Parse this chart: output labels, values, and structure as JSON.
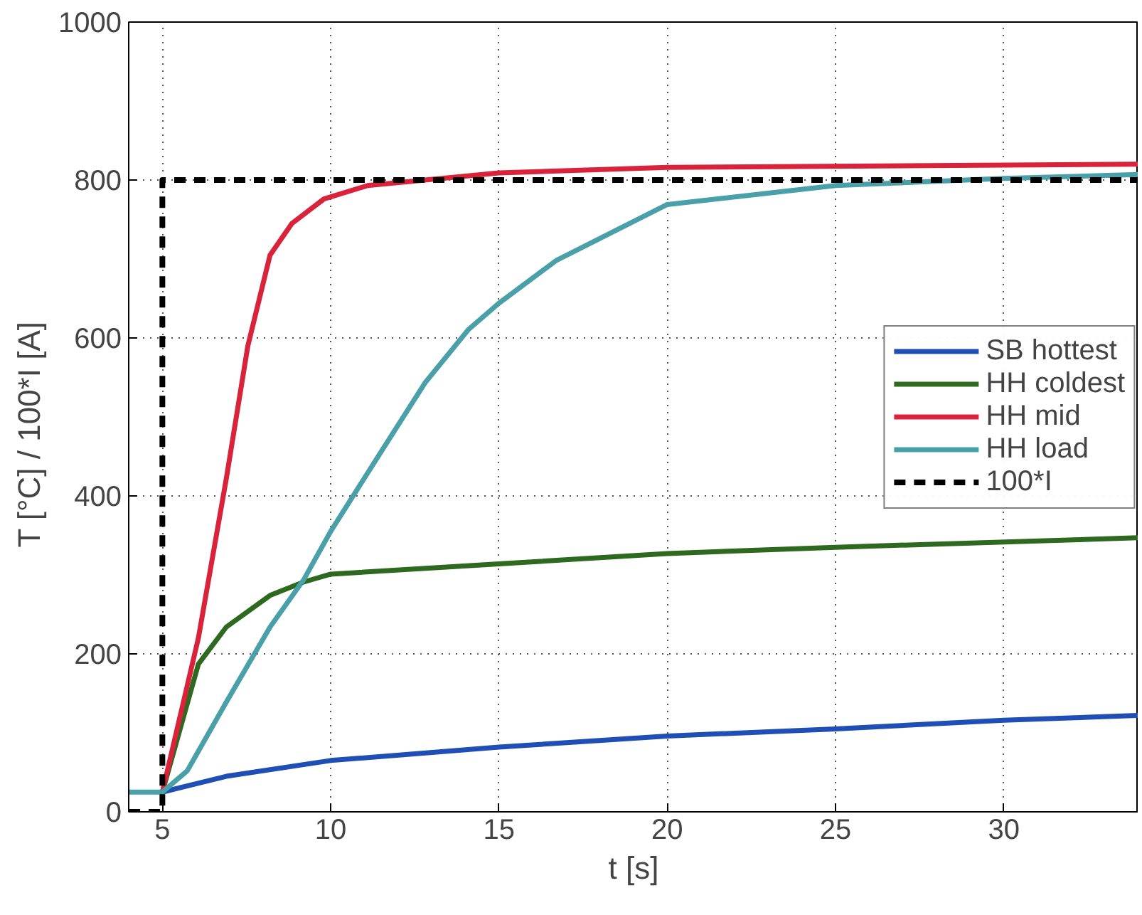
{
  "chart_data": {
    "type": "line",
    "xlabel": "t [s]",
    "ylabel": "T [°C]   /   100*I [A]",
    "xlim": [
      4,
      34
    ],
    "xticks": [
      5,
      10,
      15,
      20,
      25,
      30
    ],
    "ylim": [
      0,
      1000
    ],
    "yticks": [
      0,
      200,
      400,
      600,
      800,
      1000
    ],
    "grid": true,
    "legend": "right",
    "marker": "none",
    "series": [
      {
        "name": "SB hottest",
        "color": "#1f4fb5",
        "x": [
          5,
          6.9,
          10,
          15,
          20,
          25,
          30,
          34
        ],
        "values": [
          25,
          45,
          65,
          82,
          96,
          105,
          116,
          122
        ]
      },
      {
        "name": "HH coldest",
        "color": "#2d6a1f",
        "x": [
          5,
          6.07,
          6.9,
          8.2,
          9.2,
          10,
          15,
          20,
          25,
          34
        ],
        "values": [
          25,
          187,
          234,
          274,
          291,
          301,
          314,
          327,
          335,
          347
        ]
      },
      {
        "name": "HH mid",
        "color": "#d8233a",
        "x": [
          5,
          6.07,
          6.9,
          7.54,
          8.2,
          8.85,
          9.8,
          11.1,
          15,
          20,
          34
        ],
        "values": [
          25,
          220,
          422,
          590,
          705,
          745,
          776,
          793,
          809,
          816,
          820
        ]
      },
      {
        "name": "HH load",
        "color": "#4aa0a8",
        "x": [
          4,
          5,
          5.74,
          6.9,
          8.2,
          9.2,
          10,
          11.5,
          12.8,
          14.1,
          15,
          16.7,
          20,
          25,
          30,
          34
        ],
        "values": [
          25,
          25,
          52,
          139,
          234,
          294,
          355,
          456,
          543,
          611,
          644,
          698,
          769,
          793,
          802,
          807
        ]
      },
      {
        "name": "100*I",
        "color": "#000000",
        "line_style": "dashed",
        "x": [
          4,
          5,
          5,
          34
        ],
        "values": [
          0,
          0,
          800,
          800
        ]
      }
    ]
  }
}
